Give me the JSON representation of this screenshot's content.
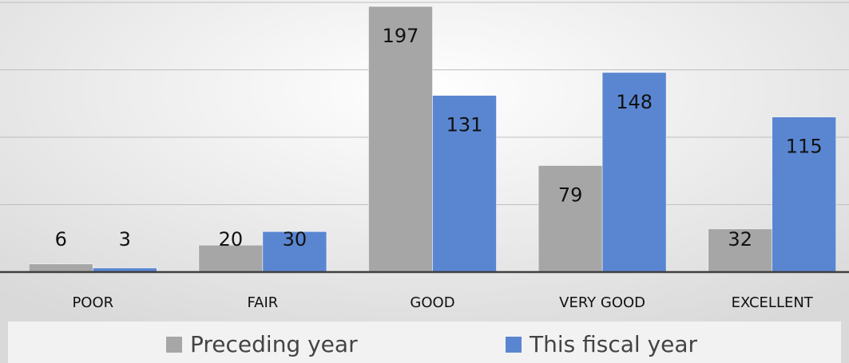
{
  "chart_data": {
    "type": "bar",
    "categories": [
      "POOR",
      "FAIR",
      "GOOD",
      "VERY GOOD",
      "EXCELLENT"
    ],
    "series": [
      {
        "name": "Preceding year",
        "color": "#a6a6a6",
        "values": [
          6,
          20,
          197,
          79,
          32
        ]
      },
      {
        "name": "This fiscal year",
        "color": "#5a86d1",
        "values": [
          3,
          30,
          131,
          148,
          115
        ]
      }
    ],
    "ylim": [
      0,
      200
    ],
    "yticks": [
      0,
      50,
      100,
      150,
      200
    ],
    "grid": true,
    "legend": "bottom"
  }
}
